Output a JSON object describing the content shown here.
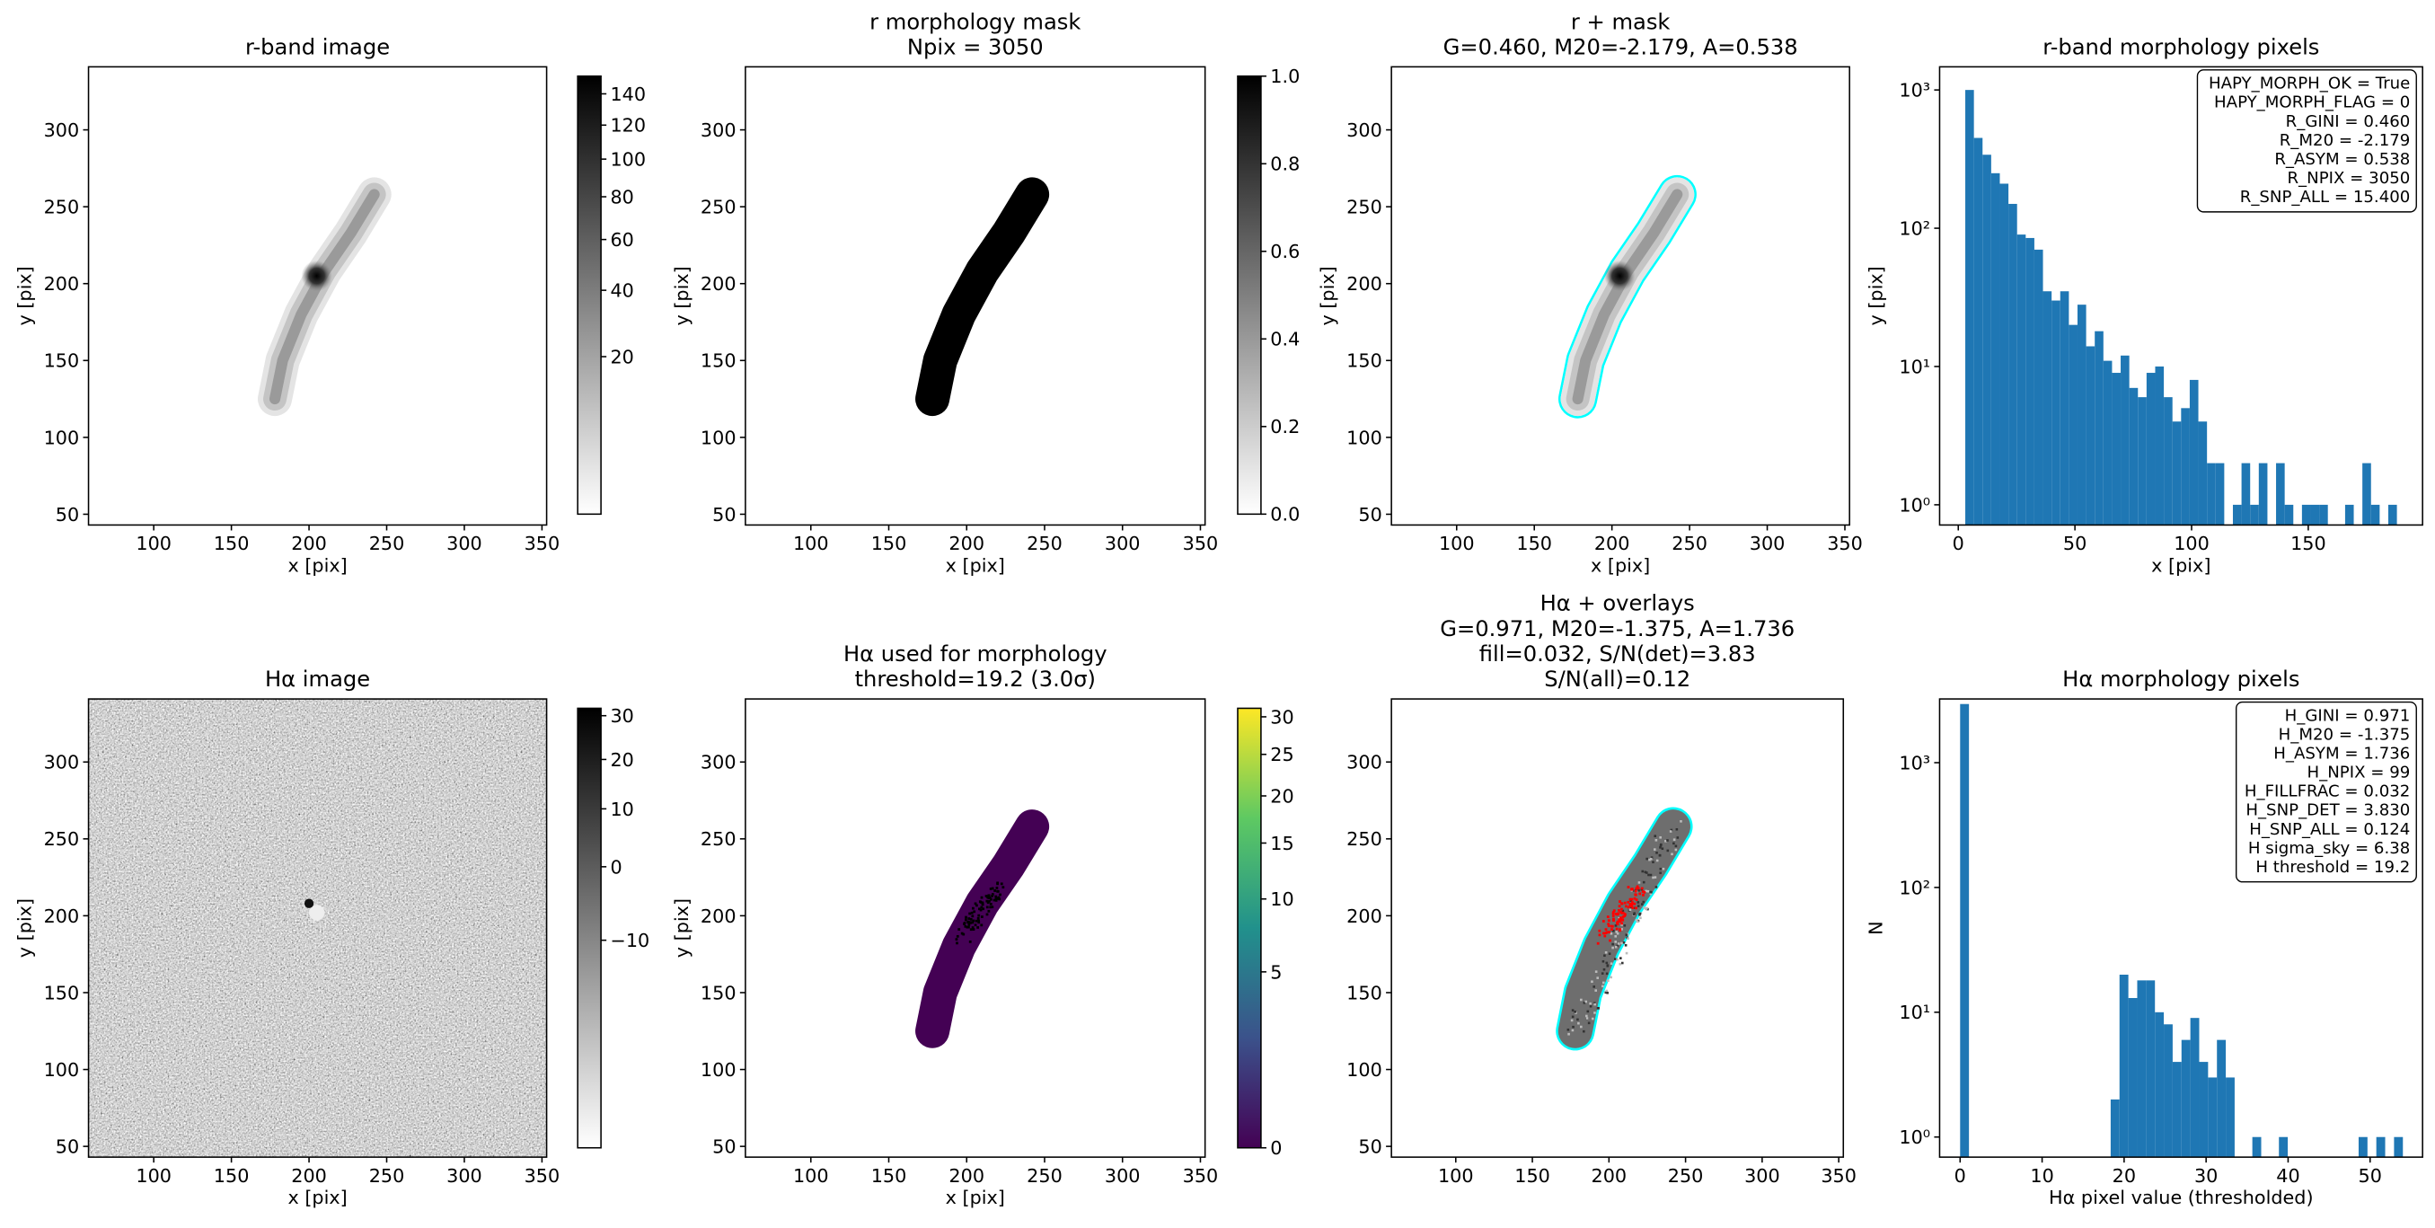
{
  "chart_data": [
    {
      "type": "image",
      "title": [
        "r-band image"
      ],
      "xlabel": "x [pix]",
      "ylabel": "y [pix]",
      "xlim": [
        58,
        353
      ],
      "ylim": [
        43,
        341
      ],
      "xticks": [
        100,
        150,
        200,
        250,
        300,
        350
      ],
      "yticks": [
        50,
        100,
        150,
        200,
        250,
        300
      ],
      "cmap": "gray_r",
      "colorbar": {
        "scale": "sqrt",
        "clim": [
          0.4,
          152
        ],
        "ticks": [
          20,
          40,
          60,
          80,
          100,
          120,
          140
        ]
      }
    },
    {
      "type": "image",
      "title": [
        "r morphology mask",
        "Npix = 3050"
      ],
      "xlabel": "x [pix]",
      "ylabel": "y [pix]",
      "xlim": [
        58,
        353
      ],
      "ylim": [
        43,
        341
      ],
      "xticks": [
        100,
        150,
        200,
        250,
        300,
        350
      ],
      "yticks": [
        50,
        100,
        150,
        200,
        250,
        300
      ],
      "cmap": "gray_r",
      "colorbar": {
        "scale": "linear",
        "clim": [
          0,
          1
        ],
        "ticks": [
          {
            "value": 0,
            "label": "0.0"
          },
          0.2,
          0.4,
          0.6,
          0.8,
          {
            "value": 1,
            "label": "1.0"
          }
        ]
      }
    },
    {
      "type": "image",
      "title": [
        "r + mask",
        "G=0.460, M20=-2.179, A=0.538"
      ],
      "xlabel": "x [pix]",
      "ylabel": "y [pix]",
      "xlim": [
        58,
        353
      ],
      "ylim": [
        43,
        341
      ],
      "xticks": [
        100,
        150,
        200,
        250,
        300,
        350
      ],
      "yticks": [
        50,
        100,
        150,
        200,
        250,
        300
      ],
      "cmap": "gray_r",
      "contour_color": "#00ffff"
    },
    {
      "type": "histogram",
      "title": [
        "r-band morphology pixels"
      ],
      "xlabel": "x [pix]",
      "ylabel": "y [pix]",
      "color": "#1f77b4",
      "bins": [
        3.0,
        6.7,
        10.4,
        14.1,
        17.8,
        21.5,
        25.2,
        28.9,
        32.6,
        36.3,
        40.0,
        43.7,
        47.4,
        51.1,
        54.8,
        58.5,
        62.2,
        65.9,
        69.6,
        73.3,
        77.0,
        80.7,
        84.4,
        88.1,
        91.8,
        95.5,
        99.2,
        102.9,
        106.6,
        110.3,
        114.0,
        117.7,
        121.4,
        125.1,
        128.8,
        132.5,
        136.2,
        139.9,
        143.6,
        147.3,
        151.0,
        154.7,
        158.4,
        162.1,
        165.8,
        169.5,
        173.2,
        176.9,
        180.6,
        184.3,
        188.0
      ],
      "counts": [
        1000,
        450,
        340,
        250,
        210,
        150,
        90,
        85,
        70,
        35,
        30,
        35,
        20,
        28,
        14,
        18,
        11,
        9,
        12,
        7,
        6,
        9,
        10,
        6,
        4,
        5,
        8,
        4,
        2,
        2,
        0,
        1,
        2,
        1,
        2,
        0,
        2,
        1,
        0,
        1,
        1,
        1,
        0,
        0,
        1,
        0,
        2,
        1,
        0,
        1
      ],
      "xlim": [
        -8,
        199
      ],
      "xticks": [
        0,
        50,
        100,
        150
      ],
      "ylog": true,
      "ylim": [
        0.714,
        1470
      ],
      "yticks": [
        {
          "value": 1,
          "label": "10⁰"
        },
        {
          "value": 10,
          "label": "10¹"
        },
        {
          "value": 100,
          "label": "10²"
        },
        {
          "value": 1000,
          "label": "10³"
        }
      ],
      "annotation": [
        "HAPY_MORPH_OK = True",
        "HAPY_MORPH_FLAG = 0",
        "R_GINI = 0.460",
        "R_M20 = -2.179",
        "R_ASYM = 0.538",
        "R_NPIX = 3050",
        "R_SNP_ALL = 15.400"
      ]
    },
    {
      "type": "image",
      "title": [
        "Hα image"
      ],
      "xlabel": "x [pix]",
      "ylabel": "y [pix]",
      "xlim": [
        58,
        353
      ],
      "ylim": [
        43,
        341
      ],
      "xticks": [
        100,
        150,
        200,
        250,
        300,
        350
      ],
      "yticks": [
        50,
        100,
        150,
        200,
        250,
        300
      ],
      "cmap": "gray_r",
      "colorbar": {
        "scale": "sqrt",
        "clim": [
          -22,
          31.8
        ],
        "ticks": [
          {
            "value": -10,
            "label": "−10"
          },
          0,
          10,
          20,
          30
        ]
      }
    },
    {
      "type": "image",
      "title": [
        "Hα used for morphology",
        "threshold=19.2 (3.0σ)"
      ],
      "xlabel": "x [pix]",
      "ylabel": "y [pix]",
      "xlim": [
        58,
        353
      ],
      "ylim": [
        43,
        341
      ],
      "xticks": [
        100,
        150,
        200,
        250,
        300,
        350
      ],
      "yticks": [
        50,
        100,
        150,
        200,
        250,
        300
      ],
      "cmap": "viridis",
      "colorbar": {
        "scale": "sqrt",
        "clim": [
          0,
          31.2
        ],
        "ticks": [
          0,
          5,
          10,
          15,
          20,
          25,
          30
        ]
      }
    },
    {
      "type": "image",
      "title": [
        "Hα + overlays",
        "G=0.971, M20=-1.375, A=1.736",
        "fill=0.032, S/N(det)=3.83",
        "S/N(all)=0.12"
      ],
      "xlim": [
        58,
        353
      ],
      "ylim": [
        43,
        341
      ],
      "xticks": [
        100,
        150,
        200,
        250,
        300,
        350
      ],
      "yticks": [
        50,
        100,
        150,
        200,
        250,
        300
      ],
      "cmap": "gray_r",
      "contour_color": "#00ffff",
      "highlight_color": "#ff0000"
    },
    {
      "type": "histogram",
      "title": [
        "Hα morphology pixels"
      ],
      "xlabel": "Hα pixel value (thresholded)",
      "ylabel": "N",
      "color": "#1f77b4",
      "bins": [
        0,
        1.08,
        2.16,
        3.24,
        4.32,
        5.4,
        6.48,
        7.56,
        8.64,
        9.72,
        10.8,
        11.88,
        12.96,
        14.04,
        15.12,
        16.2,
        17.28,
        18.36,
        19.44,
        20.52,
        21.6,
        22.68,
        23.76,
        24.84,
        25.92,
        27.0,
        28.08,
        29.16,
        30.24,
        31.32,
        32.4,
        33.48,
        34.56,
        35.64,
        36.72,
        37.8,
        38.88,
        39.96,
        41.04,
        42.12,
        43.2,
        44.28,
        45.36,
        46.44,
        47.52,
        48.6,
        49.68,
        50.76,
        51.84,
        52.92,
        54.0
      ],
      "counts": [
        2951,
        0,
        0,
        0,
        0,
        0,
        0,
        0,
        0,
        0,
        0,
        0,
        0,
        0,
        0,
        0,
        0,
        2,
        20,
        13,
        18,
        18,
        10,
        8,
        4,
        6,
        9,
        4,
        3,
        6,
        3,
        0,
        0,
        1,
        0,
        0,
        1,
        0,
        0,
        0,
        0,
        0,
        0,
        0,
        0,
        1,
        0,
        1,
        0,
        1
      ],
      "xlim": [
        -2.5,
        56.4
      ],
      "xticks": [
        0,
        10,
        20,
        30,
        40,
        50
      ],
      "ylog": true,
      "ylim": [
        0.69,
        3240
      ],
      "yticks": [
        {
          "value": 1,
          "label": "10⁰"
        },
        {
          "value": 10,
          "label": "10¹"
        },
        {
          "value": 100,
          "label": "10²"
        },
        {
          "value": 1000,
          "label": "10³"
        }
      ],
      "annotation": [
        "H_GINI = 0.971",
        "H_M20 = -1.375",
        "H_ASYM = 1.736",
        "H_NPIX = 99",
        "H_FILLFRAC = 0.032",
        "H_SNP_DET = 3.830",
        "H_SNP_ALL = 0.124",
        "H sigma_sky = 6.38",
        "H threshold = 19.2"
      ]
    }
  ]
}
